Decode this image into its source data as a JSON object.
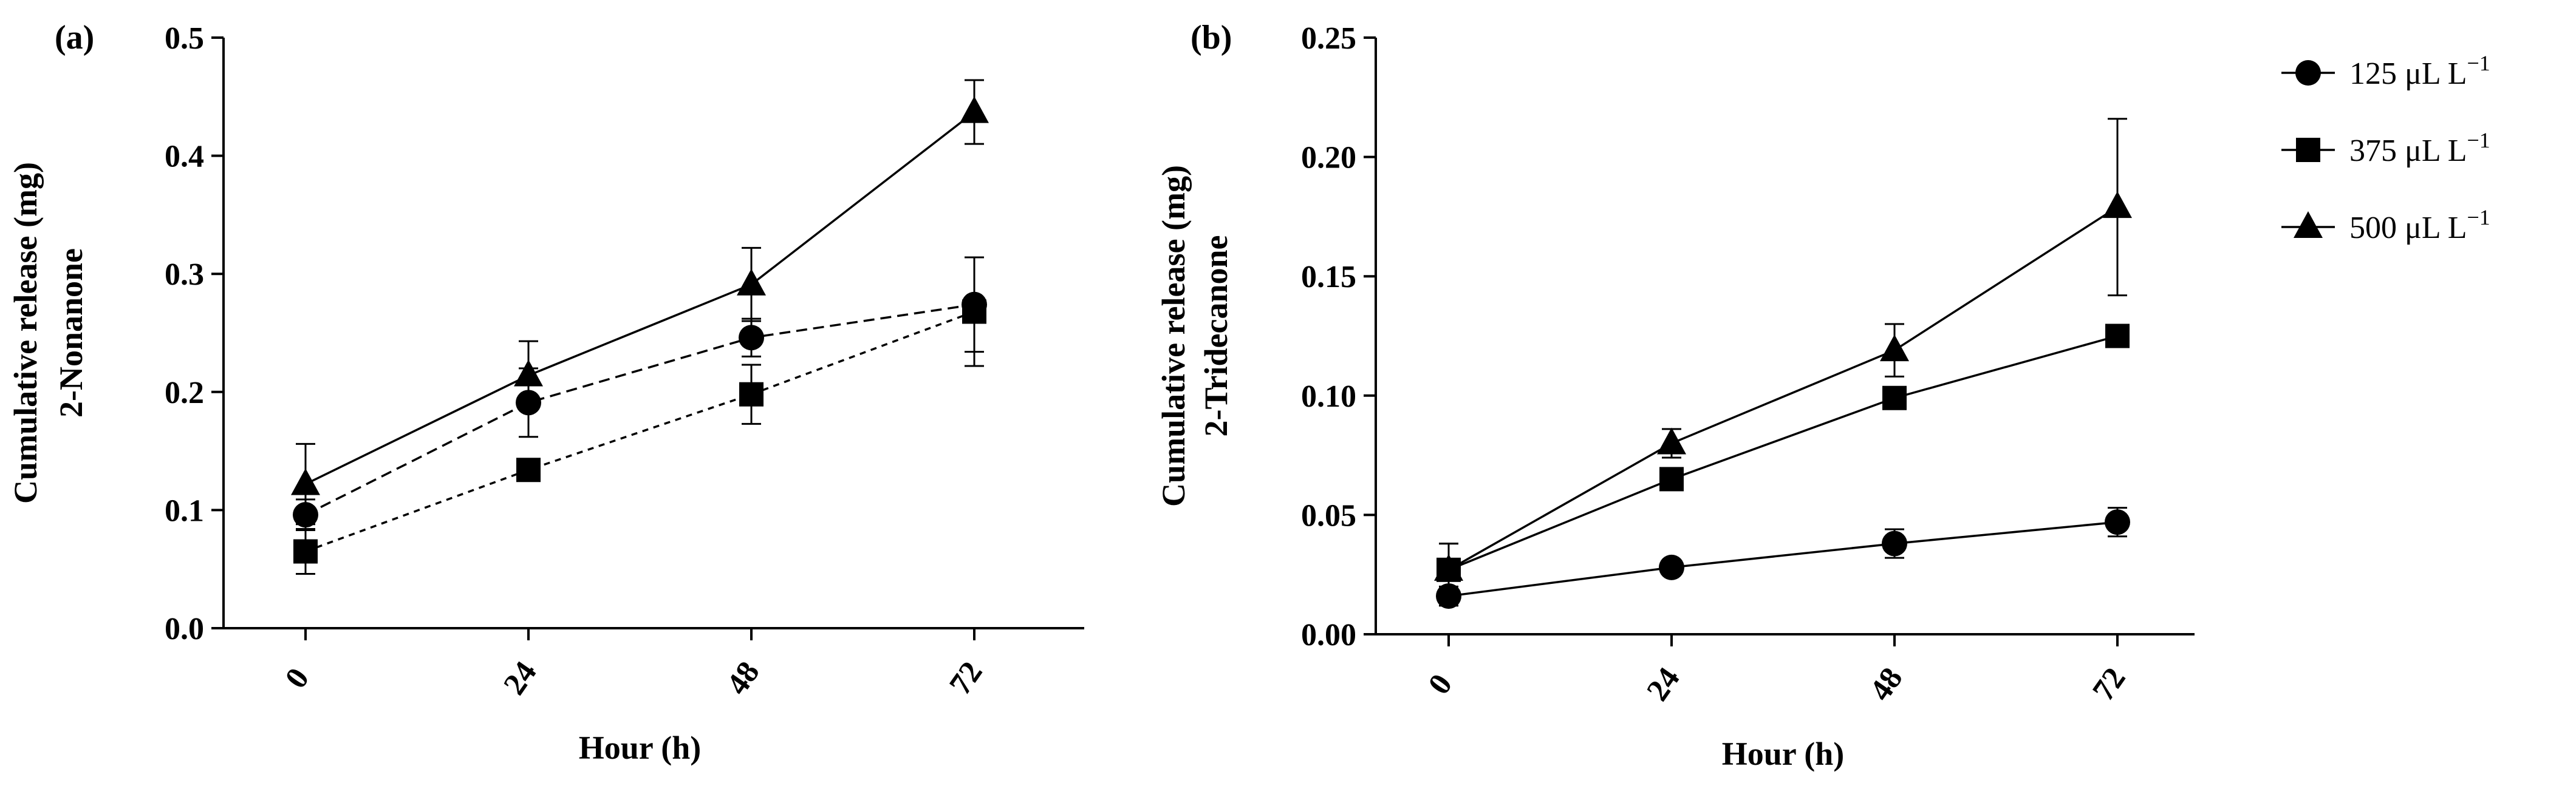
{
  "chart_data": [
    {
      "type": "line",
      "panel_label": "(a)",
      "title": "",
      "xlabel": "Hour (h)",
      "ylabel": [
        "Cumulative release (mg)",
        "2-Nonanone"
      ],
      "categories": [
        "0",
        "24",
        "48",
        "72"
      ],
      "x": [
        0,
        24,
        48,
        72
      ],
      "ylim": [
        0.0,
        0.5
      ],
      "yticks": [
        0.0,
        0.1,
        0.2,
        0.3,
        0.4,
        0.5
      ],
      "ytick_labels": [
        "0.0",
        "0.1",
        "0.2",
        "0.3",
        "0.4",
        "0.5"
      ],
      "series": [
        {
          "name": "125 μL L⁻¹",
          "marker": "circle",
          "dash": "18,10",
          "values": [
            0.096,
            0.191,
            0.246,
            0.274
          ],
          "errors": [
            0.013,
            0.029,
            0.016,
            0.04
          ]
        },
        {
          "name": "375 μL L⁻¹",
          "marker": "square",
          "dash": "10,9",
          "values": [
            0.065,
            0.134,
            0.198,
            0.268
          ],
          "errors": [
            0.019,
            0.006,
            0.025,
            0.046
          ]
        },
        {
          "name": "500 μL L⁻¹",
          "marker": "triangle",
          "dash": "",
          "values": [
            0.122,
            0.214,
            0.291,
            0.437
          ],
          "errors": [
            0.034,
            0.029,
            0.031,
            0.027
          ]
        }
      ]
    },
    {
      "type": "line",
      "panel_label": "(b)",
      "title": "",
      "xlabel": "Hour (h)",
      "ylabel": [
        "Cumulative release (mg)",
        "2-Tridecanone"
      ],
      "categories": [
        "0",
        "24",
        "48",
        "72"
      ],
      "x": [
        0,
        24,
        48,
        72
      ],
      "ylim": [
        0.0,
        0.25
      ],
      "yticks": [
        0.0,
        0.05,
        0.1,
        0.15,
        0.2,
        0.25
      ],
      "ytick_labels": [
        "0.00",
        "0.05",
        "0.10",
        "0.15",
        "0.20",
        "0.25"
      ],
      "series": [
        {
          "name": "125 μL L⁻¹",
          "marker": "circle",
          "dash": "",
          "values": [
            0.016,
            0.028,
            0.038,
            0.047
          ],
          "errors": [
            0.004,
            0.002,
            0.006,
            0.006
          ]
        },
        {
          "name": "375 μL L⁻¹",
          "marker": "square",
          "dash": "",
          "values": [
            0.027,
            0.065,
            0.099,
            0.125
          ],
          "errors": [
            0.011,
            0.004,
            0.003,
            0.003
          ]
        },
        {
          "name": "500 μL L⁻¹",
          "marker": "triangle",
          "dash": "",
          "values": [
            0.027,
            0.08,
            0.119,
            0.179
          ],
          "errors": [
            0.011,
            0.006,
            0.011,
            0.037
          ]
        }
      ]
    }
  ],
  "legend": {
    "position": "top-right",
    "entries": [
      {
        "marker": "circle",
        "value": "125",
        "unit": "μL L",
        "exponent": "−1"
      },
      {
        "marker": "square",
        "value": "375",
        "unit": "μL L",
        "exponent": "−1"
      },
      {
        "marker": "triangle",
        "value": "500",
        "unit": "μL L",
        "exponent": "−1"
      }
    ]
  }
}
